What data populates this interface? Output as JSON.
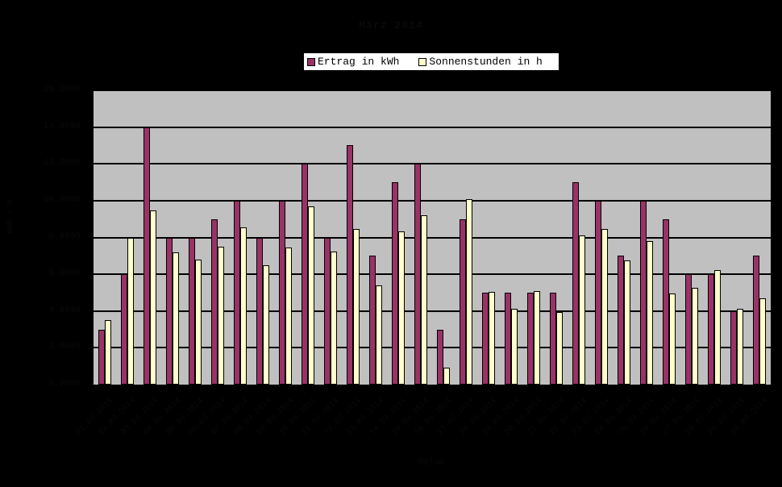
{
  "chart_data": {
    "type": "bar",
    "title": "März 2014",
    "xlabel": "Datum",
    "ylabel": "kWh / h",
    "ylim": [
      0,
      16
    ],
    "yticks": [
      "0,0000",
      "2,0000",
      "4,0000",
      "6,0000",
      "8,0000",
      "10,0000",
      "12,0000",
      "14,0000",
      "16,0000"
    ],
    "grid": true,
    "legend_position": "top",
    "categories": [
      "01.03.2014",
      "02.03.2014",
      "03.03.2014",
      "04.03.2014",
      "05.03.2014",
      "06.03.2014",
      "07.03.2014",
      "08.03.2014",
      "09.03.2014",
      "10.03.2014",
      "11.03.2014",
      "12.03.2014",
      "13.03.2014",
      "14.03.2014",
      "15.03.2014",
      "16.03.2014",
      "17.03.2014",
      "18.03.2014",
      "19.03.2014",
      "20.03.2014",
      "21.03.2014",
      "22.03.2014",
      "23.03.2014",
      "24.03.2014",
      "25.03.2014",
      "26.03.2014",
      "27.03.2014",
      "28.03.2014",
      "29.03.2014",
      "30.03.2014"
    ],
    "series": [
      {
        "name": "Ertrag in kWh",
        "color": "#993366",
        "values": [
          3,
          6,
          14,
          8,
          8,
          9,
          10,
          8,
          10,
          12,
          8,
          13,
          7,
          11,
          12,
          3,
          9,
          5,
          5,
          5,
          5,
          11,
          10,
          7,
          10,
          9,
          6,
          6,
          4,
          7
        ]
      },
      {
        "name": "Sonnenstunden in h",
        "color": "#ffffcc",
        "values": [
          3.5,
          8,
          9.45,
          7.2,
          6.8,
          7.5,
          8.55,
          6.5,
          7.47,
          9.67,
          7.25,
          8.48,
          5.4,
          8.35,
          9.19,
          0.92,
          10.1,
          5.05,
          4.13,
          5.1,
          3.96,
          8.13,
          8.44,
          6.77,
          7.82,
          4.97,
          5.27,
          6.24,
          4.13,
          4.7
        ]
      }
    ]
  }
}
